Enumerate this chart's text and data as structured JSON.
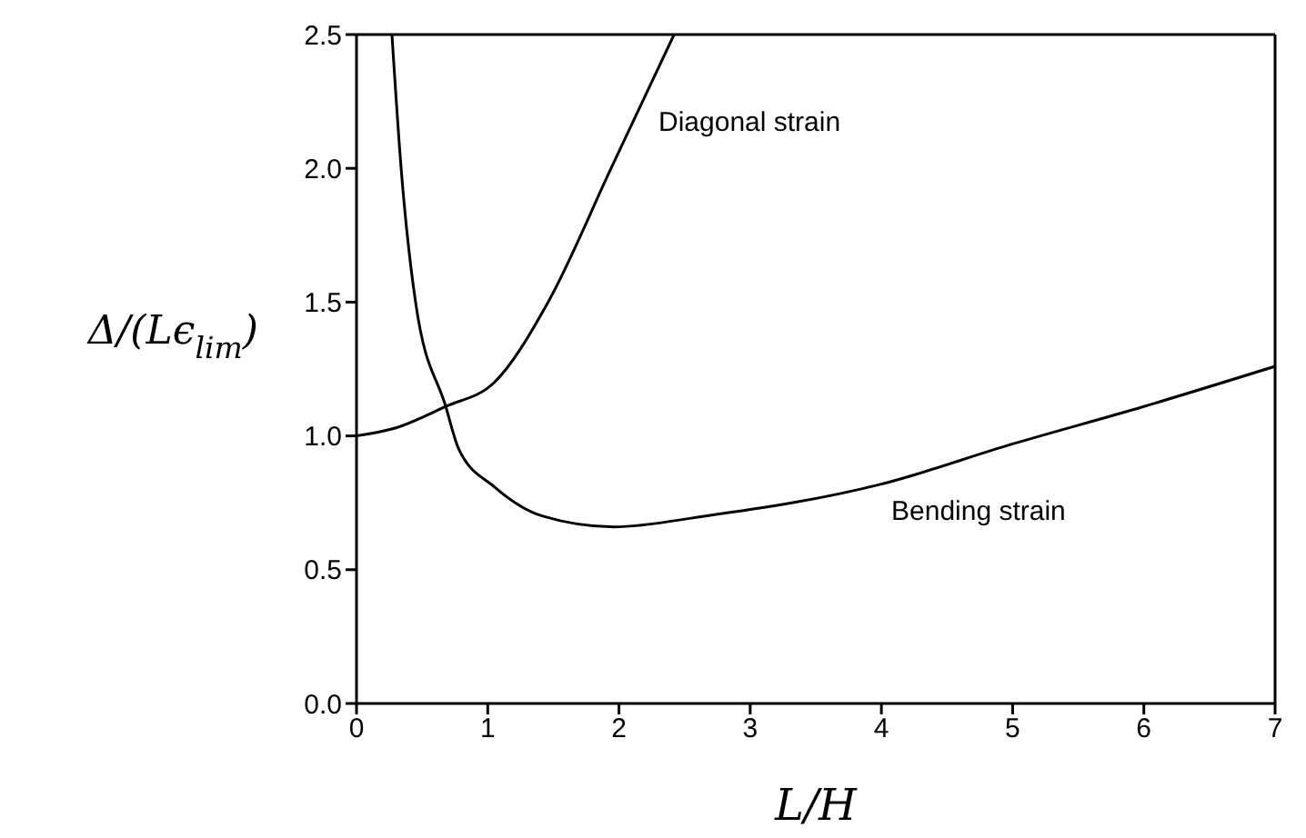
{
  "chart_data": {
    "type": "line",
    "xlabel": "L/H",
    "ylabel": "Δ/(Lϵ$_{lim}$)",
    "xlim": [
      0,
      7
    ],
    "xticks": [
      0,
      1,
      2,
      3,
      4,
      5,
      6,
      7
    ],
    "ylim": [
      0,
      2.5
    ],
    "yticks": [
      {
        "value": 0,
        "label": "0.0"
      },
      {
        "value": 0.5,
        "label": "0.5"
      },
      {
        "value": 1,
        "label": "1.0"
      },
      {
        "value": 1.5,
        "label": "1.5"
      },
      {
        "value": 2,
        "label": "2.0"
      },
      {
        "value": 2.5,
        "label": "2.5"
      }
    ],
    "marker": "none",
    "line_style": "solid",
    "series": [
      {
        "color": "#000000",
        "x": [
          0,
          0.3,
          0.68,
          1.05,
          1.46,
          1.94,
          2.42
        ],
        "values": [
          1.0,
          1.03,
          1.11,
          1.2,
          1.5,
          2.0,
          2.5
        ]
      },
      {
        "color": "#000000",
        "x": [
          0.27,
          0.34,
          0.45,
          0.68,
          0.78,
          1.05,
          1.42,
          1.96,
          2.65,
          4.0,
          5.0,
          6.0,
          7.0
        ],
        "values": [
          2.5,
          2.0,
          1.5,
          1.11,
          0.95,
          0.81,
          0.7,
          0.66,
          0.7,
          0.82,
          0.97,
          1.11,
          1.26
        ]
      }
    ],
    "annotations": [
      "Diagonal strain",
      "Bending strain"
    ]
  }
}
